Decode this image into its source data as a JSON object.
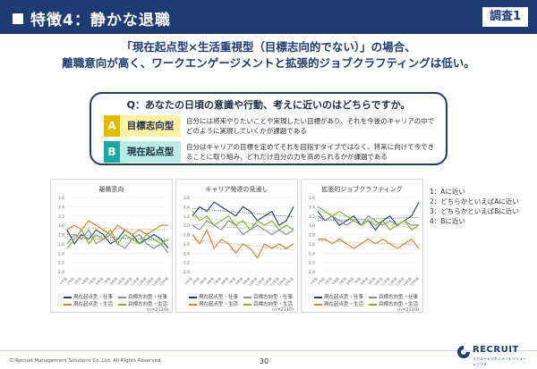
{
  "header": {
    "title": "特徴4：静かな退職",
    "badge": "調査1"
  },
  "subtitle": {
    "line1": "「現在起点型×生活重視型（目標志向的でない）」の場合、",
    "line2": "離職意向が高く、ワークエンゲージメントと拡張的ジョブクラフティングは低い。"
  },
  "question": {
    "text": "Q：あなたの日頃の意識や行動、考えに近いのはどちらですか。",
    "options": [
      {
        "letter": "A",
        "name": "目標志向型",
        "desc": "自分には将来やりたいことや実現したい目標があり、それを今後のキャリアの中でどのように実現していくかが課題である"
      },
      {
        "letter": "B",
        "name": "現在起点型",
        "desc": "自分はキャリアの目標を定めてそれを目指すタイプではなく、将来に向けて今できることに取り組み、どれだけ自分の力を高められるかが課題である"
      }
    ]
  },
  "scale": [
    "1：Aに近い",
    "2：どちらかといえばAに近い",
    "3：どちらかといえばBに近い",
    "4：Bに近い"
  ],
  "legend": [
    "現在起点型・仕事",
    "目標志向型・仕事",
    "現在起点型・生活",
    "目標志向型・生活"
  ],
  "n_label": "(n=2110)",
  "colors": {
    "navy": "#1f3b73",
    "teal": "#1aa7a0",
    "gray": "#8c8c8c",
    "orange": "#e07b28",
    "green": "#7fae2f"
  },
  "chart_data": [
    {
      "type": "line",
      "title": "離職意向",
      "ylim": [
        2.0,
        3.6
      ],
      "yticks": [
        "3.6",
        "3.4",
        "3.2",
        "3.0",
        "2.8",
        "2.6",
        "2.4",
        "2.2",
        "2.0"
      ],
      "x": [
        "1年目",
        "2年目",
        "3年目",
        "4年目",
        "5年目",
        "6年目",
        "7年目",
        "8年目",
        "9年目",
        "10年目",
        "11年目",
        "12年目",
        "13年目",
        "14年目",
        "15年目"
      ],
      "series": [
        {
          "name": "現在起点型・仕事",
          "values": [
            2.9,
            2.6,
            2.8,
            2.7,
            2.9,
            2.8,
            2.6,
            2.7,
            2.9,
            2.8,
            2.6,
            2.7,
            2.8,
            2.7,
            2.5
          ]
        },
        {
          "name": "目標志向型・仕事",
          "values": [
            2.6,
            2.8,
            2.7,
            2.9,
            2.6,
            2.7,
            2.8,
            2.6,
            2.5,
            2.7,
            2.8,
            2.6,
            2.5,
            2.6,
            2.4
          ]
        },
        {
          "name": "現在起点型・生活",
          "values": [
            2.9,
            3.0,
            2.9,
            3.1,
            3.0,
            2.9,
            2.8,
            3.0,
            2.9,
            2.8,
            2.9,
            2.8,
            2.9,
            3.0,
            3.0
          ]
        },
        {
          "name": "目標志向型・生活",
          "values": [
            2.5,
            2.7,
            2.9,
            2.6,
            2.8,
            2.7,
            2.9,
            2.6,
            2.8,
            2.7,
            2.6,
            2.8,
            2.7,
            2.6,
            2.7
          ]
        }
      ]
    },
    {
      "type": "line",
      "title": "キャリア発達の見通し",
      "ylim": [
        2.0,
        3.6
      ],
      "yticks": [
        "3.6",
        "3.4",
        "3.2",
        "3.0",
        "2.8",
        "2.6",
        "2.4",
        "2.2",
        "2.0"
      ],
      "x": [
        "1年目",
        "2年目",
        "3年目",
        "4年目",
        "5年目",
        "6年目",
        "7年目",
        "8年目",
        "9年目",
        "10年目",
        "11年目",
        "12年目",
        "13年目",
        "14年目",
        "15年目"
      ],
      "series": [
        {
          "name": "現在起点型・仕事",
          "values": [
            3.2,
            3.4,
            3.3,
            3.5,
            3.4,
            3.3,
            3.2,
            3.4,
            3.3,
            3.1,
            3.2,
            3.3,
            3.0,
            3.1,
            3.4
          ]
        },
        {
          "name": "目標志向型・仕事",
          "values": [
            3.0,
            2.9,
            3.1,
            3.0,
            2.9,
            3.1,
            3.0,
            2.8,
            2.9,
            3.0,
            2.9,
            2.8,
            2.9,
            2.8,
            2.9
          ]
        },
        {
          "name": "現在起点型・生活",
          "values": [
            2.8,
            2.6,
            2.9,
            2.5,
            2.7,
            2.6,
            2.4,
            2.6,
            2.5,
            2.3,
            2.6,
            2.5,
            2.6,
            2.5,
            2.6
          ]
        },
        {
          "name": "目標志向型・生活",
          "values": [
            3.3,
            3.1,
            3.2,
            3.0,
            3.1,
            3.2,
            3.0,
            3.1,
            2.9,
            3.1,
            3.0,
            3.1,
            2.9,
            3.0,
            2.9
          ]
        }
      ]
    },
    {
      "type": "line",
      "title": "拡張的ジョブクラフティング",
      "ylim": [
        2.0,
        3.6
      ],
      "yticks": [
        "3.6",
        "3.4",
        "3.2",
        "3.0",
        "2.8",
        "2.6",
        "2.4",
        "2.2",
        "2.0"
      ],
      "x": [
        "1年目",
        "2年目",
        "3年目",
        "4年目",
        "5年目",
        "6年目",
        "7年目",
        "8年目",
        "9年目",
        "10年目",
        "11年目",
        "12年目",
        "13年目",
        "14年目",
        "15年目"
      ],
      "series": [
        {
          "name": "現在起点型・仕事",
          "values": [
            3.3,
            3.1,
            3.2,
            3.0,
            3.1,
            3.2,
            3.0,
            3.1,
            2.9,
            3.1,
            3.2,
            3.0,
            3.1,
            3.2,
            3.5
          ]
        },
        {
          "name": "目標志向型・仕事",
          "values": [
            3.2,
            3.1,
            3.2,
            3.1,
            3.0,
            3.1,
            3.0,
            3.2,
            3.1,
            3.0,
            3.1,
            3.0,
            3.1,
            3.0,
            3.0
          ]
        },
        {
          "name": "現在起点型・生活",
          "values": [
            2.7,
            2.7,
            2.6,
            2.7,
            2.6,
            2.5,
            2.6,
            2.7,
            2.6,
            2.7,
            2.6,
            2.5,
            2.6,
            2.7,
            2.5
          ]
        },
        {
          "name": "目標志向型・生活",
          "values": [
            3.4,
            3.3,
            3.2,
            3.3,
            3.2,
            3.1,
            3.0,
            3.1,
            3.0,
            3.1,
            2.9,
            3.0,
            3.1,
            2.9,
            3.0
          ]
        }
      ]
    }
  ],
  "footer": {
    "copyright": "© Recruit Management Solutions Co.,Ltd. All Rights Reserved.",
    "page": "30",
    "logo_word": "RECRUIT",
    "logo_sub": "リクルートマネジメントソリューションズ"
  }
}
